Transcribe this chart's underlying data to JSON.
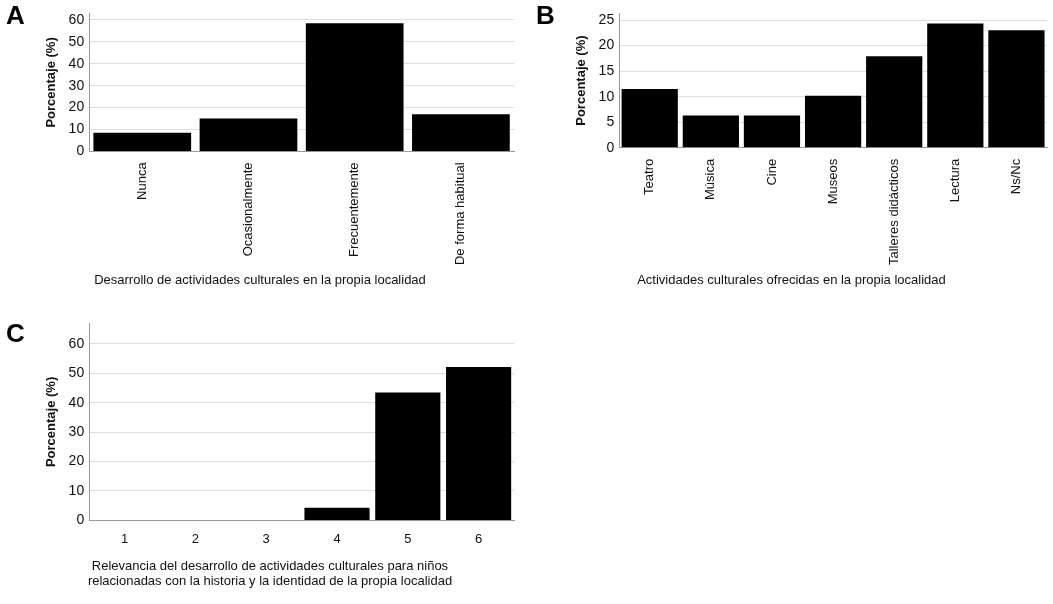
{
  "chart_data": [
    {
      "type": "bar",
      "title": "A",
      "xlabel": "Desarrollo de actividades culturales en la propia localidad",
      "ylabel": "Porcentaje (%)",
      "categories": [
        "Nunca",
        "Ocasionalmente",
        "Frecuentemente",
        "De forma habitual"
      ],
      "values": [
        8.5,
        15,
        58.5,
        17
      ],
      "color": "#000000",
      "ylim": [
        0,
        63
      ],
      "yticks": [
        0,
        10,
        20,
        30,
        40,
        50,
        60
      ],
      "grid": "y"
    },
    {
      "type": "bar",
      "title": "B",
      "xlabel": "Actividades culturales ofrecidas en la propia localidad",
      "ylabel": "Porcentaje (%)",
      "categories": [
        "Teatro",
        "Música",
        "Cine",
        "Museos",
        "Talleres didácticos",
        "Lectura",
        "Ns/Nc"
      ],
      "values": [
        11.5,
        6.3,
        6.3,
        10.2,
        17.9,
        24.3,
        23
      ],
      "color": "#000000",
      "ylim": [
        0,
        26.3
      ],
      "yticks": [
        0,
        5,
        10,
        15,
        20,
        25
      ],
      "grid": "y"
    },
    {
      "type": "bar",
      "title": "C",
      "xlabel": "Relevancia del desarrollo de actividades culturales para niños relacionadas con la historia y la identidad de la propia localidad",
      "ylabel": "Porcentaje (%)",
      "categories": [
        "1",
        "2",
        "3",
        "4",
        "5",
        "6"
      ],
      "values": [
        0,
        0,
        0,
        4.3,
        43.5,
        52.2
      ],
      "color": "#000000",
      "ylim": [
        0,
        67
      ],
      "yticks": [
        0,
        10,
        20,
        30,
        40,
        50,
        60
      ],
      "grid": "y"
    }
  ]
}
